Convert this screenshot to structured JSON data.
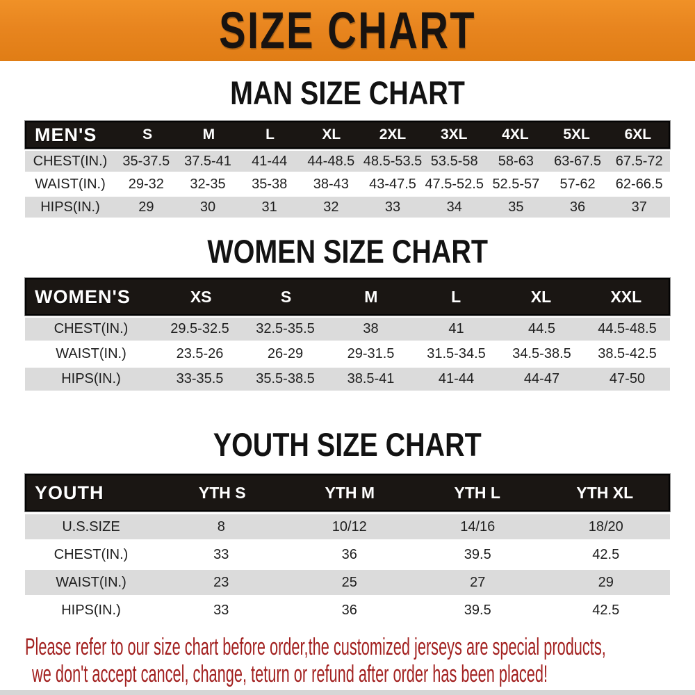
{
  "banner": {
    "title": "SIZE CHART"
  },
  "colors": {
    "banner_orange": "#E8851F",
    "header_bar_black": "#1A1613",
    "row_stripe_gray": "#DBDBDB",
    "row_stripe_white": "#FFFFFF",
    "footer_red": "#A2201F",
    "heading_black": "#121212"
  },
  "sections": [
    {
      "heading": "MAN SIZE CHART",
      "table": {
        "group_label": "MEN'S",
        "size_headers": [
          "S",
          "M",
          "L",
          "XL",
          "2XL",
          "3XL",
          "4XL",
          "5XL",
          "6XL"
        ],
        "rows": [
          {
            "label": "CHEST(IN.)",
            "values": [
              "35-37.5",
              "37.5-41",
              "41-44",
              "44-48.5",
              "48.5-53.5",
              "53.5-58",
              "58-63",
              "63-67.5",
              "67.5-72"
            ]
          },
          {
            "label": "WAIST(IN.)",
            "values": [
              "29-32",
              "32-35",
              "35-38",
              "38-43",
              "43-47.5",
              "47.5-52.5",
              "52.5-57",
              "57-62",
              "62-66.5"
            ]
          },
          {
            "label": "HIPS(IN.)",
            "values": [
              "29",
              "30",
              "31",
              "32",
              "33",
              "34",
              "35",
              "36",
              "37"
            ]
          }
        ]
      }
    },
    {
      "heading": "WOMEN SIZE CHART",
      "table": {
        "group_label": "WOMEN'S",
        "size_headers": [
          "XS",
          "S",
          "M",
          "L",
          "XL",
          "XXL"
        ],
        "rows": [
          {
            "label": "CHEST(IN.)",
            "values": [
              "29.5-32.5",
              "32.5-35.5",
              "38",
              "41",
              "44.5",
              "44.5-48.5"
            ]
          },
          {
            "label": "WAIST(IN.)",
            "values": [
              "23.5-26",
              "26-29",
              "29-31.5",
              "31.5-34.5",
              "34.5-38.5",
              "38.5-42.5"
            ]
          },
          {
            "label": "HIPS(IN.)",
            "values": [
              "33-35.5",
              "35.5-38.5",
              "38.5-41",
              "41-44",
              "44-47",
              "47-50"
            ]
          }
        ]
      }
    },
    {
      "heading": "YOUTH SIZE CHART",
      "table": {
        "group_label": "YOUTH",
        "size_headers": [
          "YTH S",
          "YTH M",
          "YTH L",
          "YTH XL"
        ],
        "rows": [
          {
            "label": "U.S.SIZE",
            "values": [
              "8",
              "10/12",
              "14/16",
              "18/20"
            ]
          },
          {
            "label": "CHEST(IN.)",
            "values": [
              "33",
              "36",
              "39.5",
              "42.5"
            ]
          },
          {
            "label": "WAIST(IN.)",
            "values": [
              "23",
              "25",
              "27",
              "29"
            ]
          },
          {
            "label": "HIPS(IN.)",
            "values": [
              "33",
              "36",
              "39.5",
              "42.5"
            ]
          }
        ]
      }
    }
  ],
  "footer": {
    "line1": "Please refer to our size chart before order,the customized jerseys are special products,",
    "line2": "we don't accept cancel, change, teturn or refund after order has been placed!"
  }
}
